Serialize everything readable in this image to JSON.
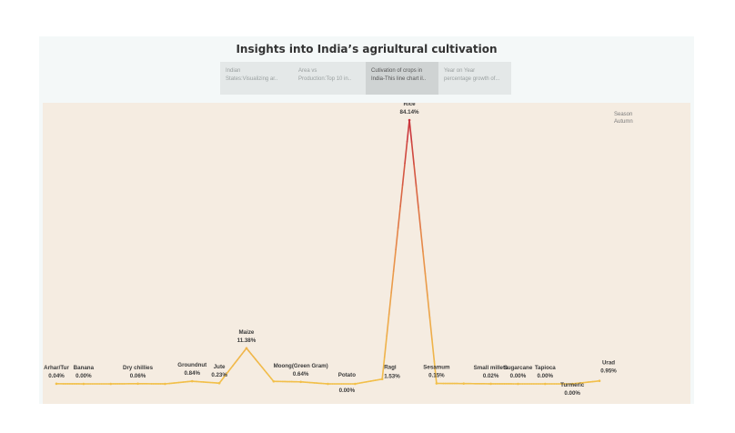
{
  "dashboard": {
    "title": "Insights into India’s agriultural cultivation",
    "tabs": [
      {
        "line1": "Indian",
        "line2": "States:Visualizing ar..",
        "active": false
      },
      {
        "line1": "Area vs",
        "line2": "Production:Top 10 in..",
        "active": false
      },
      {
        "line1": "Cutivation of crops in",
        "line2": "India-This line chart il..",
        "active": true
      },
      {
        "line1": "Year on Year",
        "line2": "percentage growth of...",
        "active": false
      }
    ],
    "legend": {
      "title": "Season",
      "value": "Autumn"
    }
  },
  "colors": {
    "low": "#f2c04a",
    "mid": "#e8904a",
    "high": "#c8303c"
  },
  "chart_data": {
    "type": "line",
    "categories": [
      "Arhar/Tur",
      "Banana",
      "",
      "Dry chillies",
      "",
      "Groundnut",
      "Jute",
      "Maize",
      "",
      "Moong(Green Gram)",
      "",
      "Potato",
      "Ragi",
      "Rice",
      "Sesamum",
      "",
      "Small millets",
      "Sugarcane",
      "Tapioca",
      "Turmeric",
      "Urad"
    ],
    "values": [
      0.04,
      0.0,
      0.0,
      0.06,
      0.0,
      0.84,
      0.23,
      11.38,
      0.8,
      0.64,
      0.0,
      0.0,
      1.53,
      84.14,
      0.15,
      0.1,
      0.02,
      0.0,
      0.0,
      0.0,
      0.95
    ],
    "labels": [
      {
        "name": "Arhar/Tur",
        "value": "0.04%"
      },
      {
        "name": "Banana",
        "value": "0.00%"
      },
      null,
      {
        "name": "Dry chillies",
        "value": "0.06%"
      },
      null,
      {
        "name": "Groundnut",
        "value": "0.84%"
      },
      {
        "name": "Jute",
        "value": "0.23%"
      },
      {
        "name": "Maize",
        "value": "11.38%"
      },
      null,
      {
        "name": "Moong(Green Gram)",
        "value": "0.64%"
      },
      null,
      {
        "name": "Potato",
        "value": "0.00%"
      },
      {
        "name": "Ragi",
        "value": "1.53%"
      },
      {
        "name": "Rice",
        "value": "84.14%"
      },
      {
        "name": "Sesamum",
        "value": "0.15%"
      },
      null,
      {
        "name": "Small millets",
        "value": "0.02%"
      },
      {
        "name": "Sugarcane",
        "value": "0.00%"
      },
      {
        "name": "Tapioca",
        "value": "0.00%"
      },
      {
        "name": "Turmeric",
        "value": "0.00%"
      },
      {
        "name": "Urad",
        "value": "0.95%"
      }
    ],
    "ylim": [
      0,
      84.14
    ],
    "grid": false
  }
}
